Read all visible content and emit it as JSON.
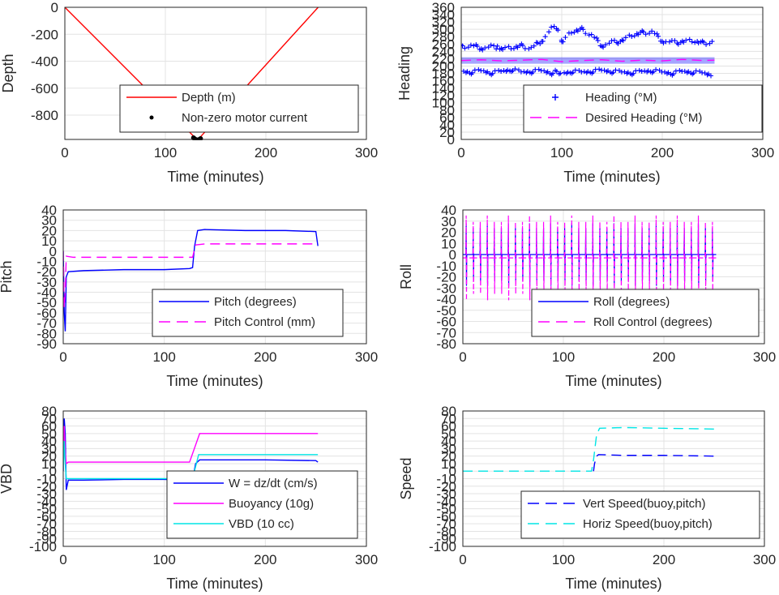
{
  "chart_data": [
    {
      "type": "line",
      "ylabel": "Depth",
      "xlabel": "Time (minutes)",
      "xlim": [
        0,
        300
      ],
      "ylim": [
        -980,
        0
      ],
      "xticks": [
        0,
        100,
        200,
        300
      ],
      "yticks": [
        0,
        -200,
        -400,
        -600,
        -800
      ],
      "grid": true,
      "legend_position": "lower-right",
      "series": [
        {
          "name": "Depth (m)",
          "style": "solid",
          "color": "#ff0000",
          "x": [
            0,
            132,
            252
          ],
          "y": [
            0,
            -985,
            0
          ]
        },
        {
          "name": "Non-zero motor current",
          "style": "dot",
          "color": "#000000",
          "x": [
            128,
            129,
            130,
            131,
            132,
            133,
            134,
            135
          ],
          "y": [
            -968,
            -975,
            -980,
            -983,
            -985,
            -983,
            -979,
            -974
          ]
        }
      ]
    },
    {
      "type": "scatter",
      "ylabel": "Heading",
      "xlabel": "Time (minutes)",
      "xlim": [
        0,
        300
      ],
      "ylim": [
        0,
        360
      ],
      "xticks": [
        0,
        100,
        200,
        300
      ],
      "yticks": [
        0,
        20,
        40,
        60,
        80,
        100,
        120,
        140,
        160,
        180,
        200,
        220,
        240,
        260,
        280,
        300,
        320,
        340,
        360
      ],
      "grid": true,
      "legend_position": "lower-right",
      "series": [
        {
          "name": "Heading (°M)",
          "style": "plus",
          "color": "#0000ff",
          "x": [
            0,
            10,
            20,
            30,
            40,
            50,
            60,
            70,
            80,
            90,
            95,
            100,
            110,
            120,
            130,
            140,
            150,
            160,
            170,
            180,
            190,
            200,
            210,
            220,
            230,
            240,
            250
          ],
          "y_low": [
            180,
            178,
            182,
            176,
            180,
            185,
            178,
            180,
            182,
            176,
            180,
            174,
            180,
            178,
            180,
            183,
            180,
            178,
            176,
            180,
            182,
            178,
            175,
            180,
            178,
            176,
            170
          ],
          "y_high": [
            258,
            262,
            255,
            258,
            252,
            256,
            260,
            255,
            275,
            308,
            310,
            270,
            300,
            305,
            290,
            262,
            270,
            275,
            290,
            296,
            300,
            275,
            270,
            272,
            275,
            268,
            272
          ]
        },
        {
          "name": "Desired Heading (°M)",
          "style": "dash",
          "color": "#ff00ff",
          "x": [
            0,
            20,
            40,
            60,
            80,
            100,
            120,
            140,
            160,
            180,
            200,
            220,
            240,
            252
          ],
          "y": [
            215,
            217,
            214,
            216,
            218,
            212,
            215,
            217,
            213,
            216,
            214,
            218,
            215,
            216
          ]
        }
      ]
    },
    {
      "type": "line",
      "ylabel": "Pitch",
      "xlabel": "Time (minutes)",
      "xlim": [
        0,
        300
      ],
      "ylim": [
        -90,
        40
      ],
      "xticks": [
        0,
        100,
        200,
        300
      ],
      "yticks": [
        40,
        30,
        20,
        10,
        0,
        -10,
        -20,
        -30,
        -40,
        -50,
        -60,
        -70,
        -80,
        -90
      ],
      "grid": true,
      "legend_position": "lower-right",
      "series": [
        {
          "name": "Pitch (degrees)",
          "style": "solid",
          "color": "#0000ff",
          "x": [
            0,
            1,
            2,
            3,
            5,
            20,
            60,
            100,
            125,
            128,
            130,
            133,
            140,
            180,
            220,
            250,
            252
          ],
          "y": [
            0,
            -60,
            -78,
            -25,
            -20,
            -19,
            -18,
            -18,
            -17,
            -16,
            5,
            20,
            21,
            20,
            20,
            19,
            5
          ]
        },
        {
          "name": "Pitch Control (mm)",
          "style": "dash",
          "color": "#ff00ff",
          "x": [
            0,
            1,
            2,
            3,
            10,
            60,
            128,
            131,
            140,
            200,
            252
          ],
          "y": [
            0,
            -55,
            -40,
            -5,
            -6,
            -6,
            -6,
            6,
            7,
            7,
            7
          ]
        }
      ]
    },
    {
      "type": "line",
      "ylabel": "Roll",
      "xlabel": "Time (minutes)",
      "xlim": [
        0,
        300
      ],
      "ylim": [
        -80,
        40
      ],
      "xticks": [
        0,
        100,
        200,
        300
      ],
      "yticks": [
        40,
        30,
        20,
        10,
        0,
        -10,
        -20,
        -30,
        -40,
        -50,
        -60,
        -70,
        -80
      ],
      "grid": true,
      "legend_position": "lower-right",
      "series": [
        {
          "name": "Roll (degrees)",
          "style": "solid",
          "color": "#0000ff",
          "spikes_x": [
            3,
            10,
            17,
            24,
            31,
            38,
            45,
            52,
            59,
            66,
            73,
            80,
            87,
            94,
            101,
            108,
            115,
            122,
            129,
            136,
            143,
            150,
            157,
            164,
            171,
            178,
            185,
            192,
            199,
            206,
            213,
            220,
            227,
            234,
            241,
            248
          ],
          "baseline": 0,
          "amplitude": 28
        },
        {
          "name": "Roll Control (degrees)",
          "style": "dash",
          "color": "#ff00ff",
          "spikes_x": [
            3,
            10,
            17,
            24,
            31,
            38,
            45,
            52,
            59,
            66,
            73,
            80,
            87,
            94,
            101,
            108,
            115,
            122,
            129,
            136,
            143,
            150,
            157,
            164,
            171,
            178,
            185,
            192,
            199,
            206,
            213,
            220,
            227,
            234,
            241,
            248
          ],
          "baseline": -3,
          "amplitude": 38
        }
      ]
    },
    {
      "type": "line",
      "ylabel": "VBD",
      "xlabel": "Time (minutes)",
      "xlim": [
        0,
        300
      ],
      "ylim": [
        -100,
        80
      ],
      "xticks": [
        0,
        100,
        200,
        300
      ],
      "yticks": [
        80,
        70,
        60,
        50,
        40,
        30,
        20,
        10,
        0,
        -10,
        -20,
        -30,
        -40,
        -50,
        -60,
        -70,
        -80,
        -90,
        -100
      ],
      "grid": true,
      "legend_position": "lower-right",
      "series": [
        {
          "name": "W = dz/dt (cm/s)",
          "style": "solid",
          "color": "#0000ff",
          "x": [
            0,
            1,
            2,
            3,
            5,
            20,
            60,
            100,
            128,
            131,
            135,
            160,
            200,
            250,
            252
          ],
          "y": [
            0,
            70,
            50,
            -25,
            -12,
            -12,
            -11,
            -11,
            -12,
            10,
            15,
            15,
            15,
            14,
            12
          ]
        },
        {
          "name": "Buoyancy (10g)",
          "style": "solid",
          "color": "#ff00ff",
          "x": [
            0,
            1,
            2,
            3,
            5,
            60,
            125,
            135,
            200,
            252
          ],
          "y": [
            0,
            60,
            25,
            10,
            12,
            12,
            12,
            50,
            50,
            50
          ]
        },
        {
          "name": "VBD (10 cc)",
          "style": "solid",
          "color": "#00e5e5",
          "x": [
            0,
            1,
            2,
            3,
            5,
            60,
            128,
            134,
            200,
            252
          ],
          "y": [
            0,
            40,
            10,
            -10,
            -10,
            -10,
            -10,
            22,
            22,
            22
          ]
        }
      ]
    },
    {
      "type": "line",
      "ylabel": "Speed",
      "xlabel": "Time (minutes)",
      "xlim": [
        0,
        300
      ],
      "ylim": [
        -100,
        80
      ],
      "xticks": [
        0,
        100,
        200,
        300
      ],
      "yticks": [
        80,
        70,
        60,
        50,
        40,
        30,
        20,
        10,
        0,
        -10,
        -20,
        -30,
        -40,
        -50,
        -60,
        -70,
        -80,
        -90,
        -100
      ],
      "grid": true,
      "legend_position": "lower-right",
      "series": [
        {
          "name": "Vert Speed(buoy,pitch)",
          "style": "dash",
          "color": "#0000ff",
          "x": [
            130,
            131,
            133,
            135,
            160,
            200,
            250
          ],
          "y": [
            0,
            10,
            20,
            22,
            21,
            21,
            20
          ]
        },
        {
          "name": "Horiz Speed(buoy,pitch)",
          "style": "dash",
          "color": "#00e5e5",
          "x": [
            0,
            60,
            128,
            130,
            133,
            136,
            160,
            200,
            250
          ],
          "y": [
            0,
            0,
            0,
            15,
            48,
            57,
            58,
            57,
            56
          ]
        }
      ]
    }
  ]
}
